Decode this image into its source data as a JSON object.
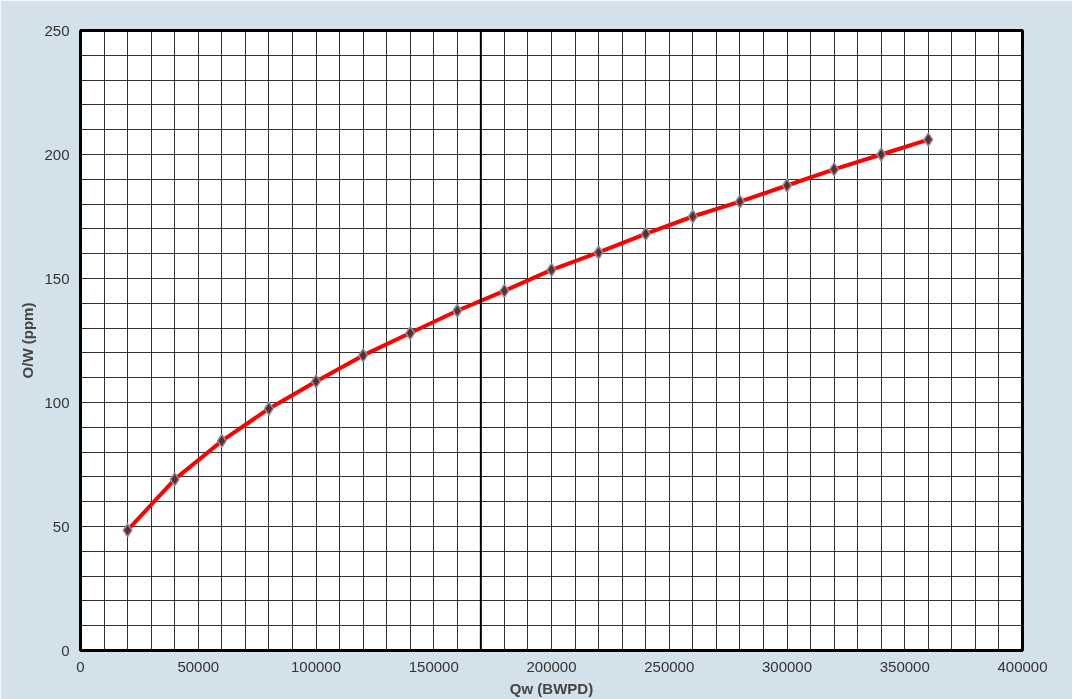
{
  "chart_data": {
    "type": "line",
    "xlabel": "Qw (BWPD)",
    "ylabel": "O/W (ppm)",
    "x": [
      20000,
      40000,
      60000,
      80000,
      100000,
      120000,
      140000,
      160000,
      180000,
      200000,
      220000,
      240000,
      260000,
      280000,
      300000,
      320000,
      340000,
      360000
    ],
    "series": [
      {
        "color": "#ff0000",
        "values": [
          48.5,
          69,
          84.5,
          97.5,
          108.5,
          119,
          128,
          137,
          145,
          153.5,
          160.5,
          168,
          175,
          181,
          187.5,
          194,
          200,
          206
        ]
      }
    ],
    "marker": "diamond",
    "line_style": "solid",
    "grid": true,
    "xlim": [
      0,
      400000
    ],
    "ylim": [
      0,
      250
    ],
    "xticks": [
      0,
      {
        "value": 10000,
        "label": null
      },
      {
        "value": 20000,
        "label": null
      },
      {
        "value": 30000,
        "label": null
      },
      {
        "value": 40000,
        "label": null
      },
      50000,
      {
        "value": 60000,
        "label": null
      },
      {
        "value": 70000,
        "label": null
      },
      {
        "value": 80000,
        "label": null
      },
      {
        "value": 90000,
        "label": null
      },
      100000,
      {
        "value": 110000,
        "label": null
      },
      {
        "value": 120000,
        "label": null
      },
      {
        "value": 130000,
        "label": null
      },
      {
        "value": 140000,
        "label": null
      },
      150000,
      {
        "value": 160000,
        "label": null
      },
      {
        "value": 170000,
        "label": null
      },
      {
        "value": 180000,
        "label": null
      },
      {
        "value": 190000,
        "label": null
      },
      200000,
      {
        "value": 210000,
        "label": null
      },
      {
        "value": 220000,
        "label": null
      },
      {
        "value": 230000,
        "label": null
      },
      {
        "value": 240000,
        "label": null
      },
      250000,
      {
        "value": 260000,
        "label": null
      },
      {
        "value": 270000,
        "label": null
      },
      {
        "value": 280000,
        "label": null
      },
      {
        "value": 290000,
        "label": null
      },
      300000,
      {
        "value": 310000,
        "label": null
      },
      {
        "value": 320000,
        "label": null
      },
      {
        "value": 330000,
        "label": null
      },
      {
        "value": 340000,
        "label": null
      },
      350000,
      {
        "value": 360000,
        "label": null
      },
      {
        "value": 370000,
        "label": null
      },
      {
        "value": 380000,
        "label": null
      },
      {
        "value": 390000,
        "label": null
      },
      400000
    ],
    "yticks": [
      0,
      {
        "value": 10,
        "label": null
      },
      {
        "value": 20,
        "label": null
      },
      {
        "value": 30,
        "label": null
      },
      {
        "value": 40,
        "label": null
      },
      50,
      {
        "value": 60,
        "label": null
      },
      {
        "value": 70,
        "label": null
      },
      {
        "value": 80,
        "label": null
      },
      {
        "value": 90,
        "label": null
      },
      100,
      {
        "value": 110,
        "label": null
      },
      {
        "value": 120,
        "label": null
      },
      {
        "value": 130,
        "label": null
      },
      {
        "value": 140,
        "label": null
      },
      150,
      {
        "value": 160,
        "label": null
      },
      {
        "value": 170,
        "label": null
      },
      {
        "value": 180,
        "label": null
      },
      {
        "value": 190,
        "label": null
      },
      200,
      {
        "value": 210,
        "label": null
      },
      {
        "value": 220,
        "label": null
      },
      {
        "value": 230,
        "label": null
      },
      {
        "value": 240,
        "label": null
      },
      250
    ],
    "ref_lines": [
      {
        "axis": "x",
        "value": 170000,
        "color": "#000000"
      }
    ]
  }
}
